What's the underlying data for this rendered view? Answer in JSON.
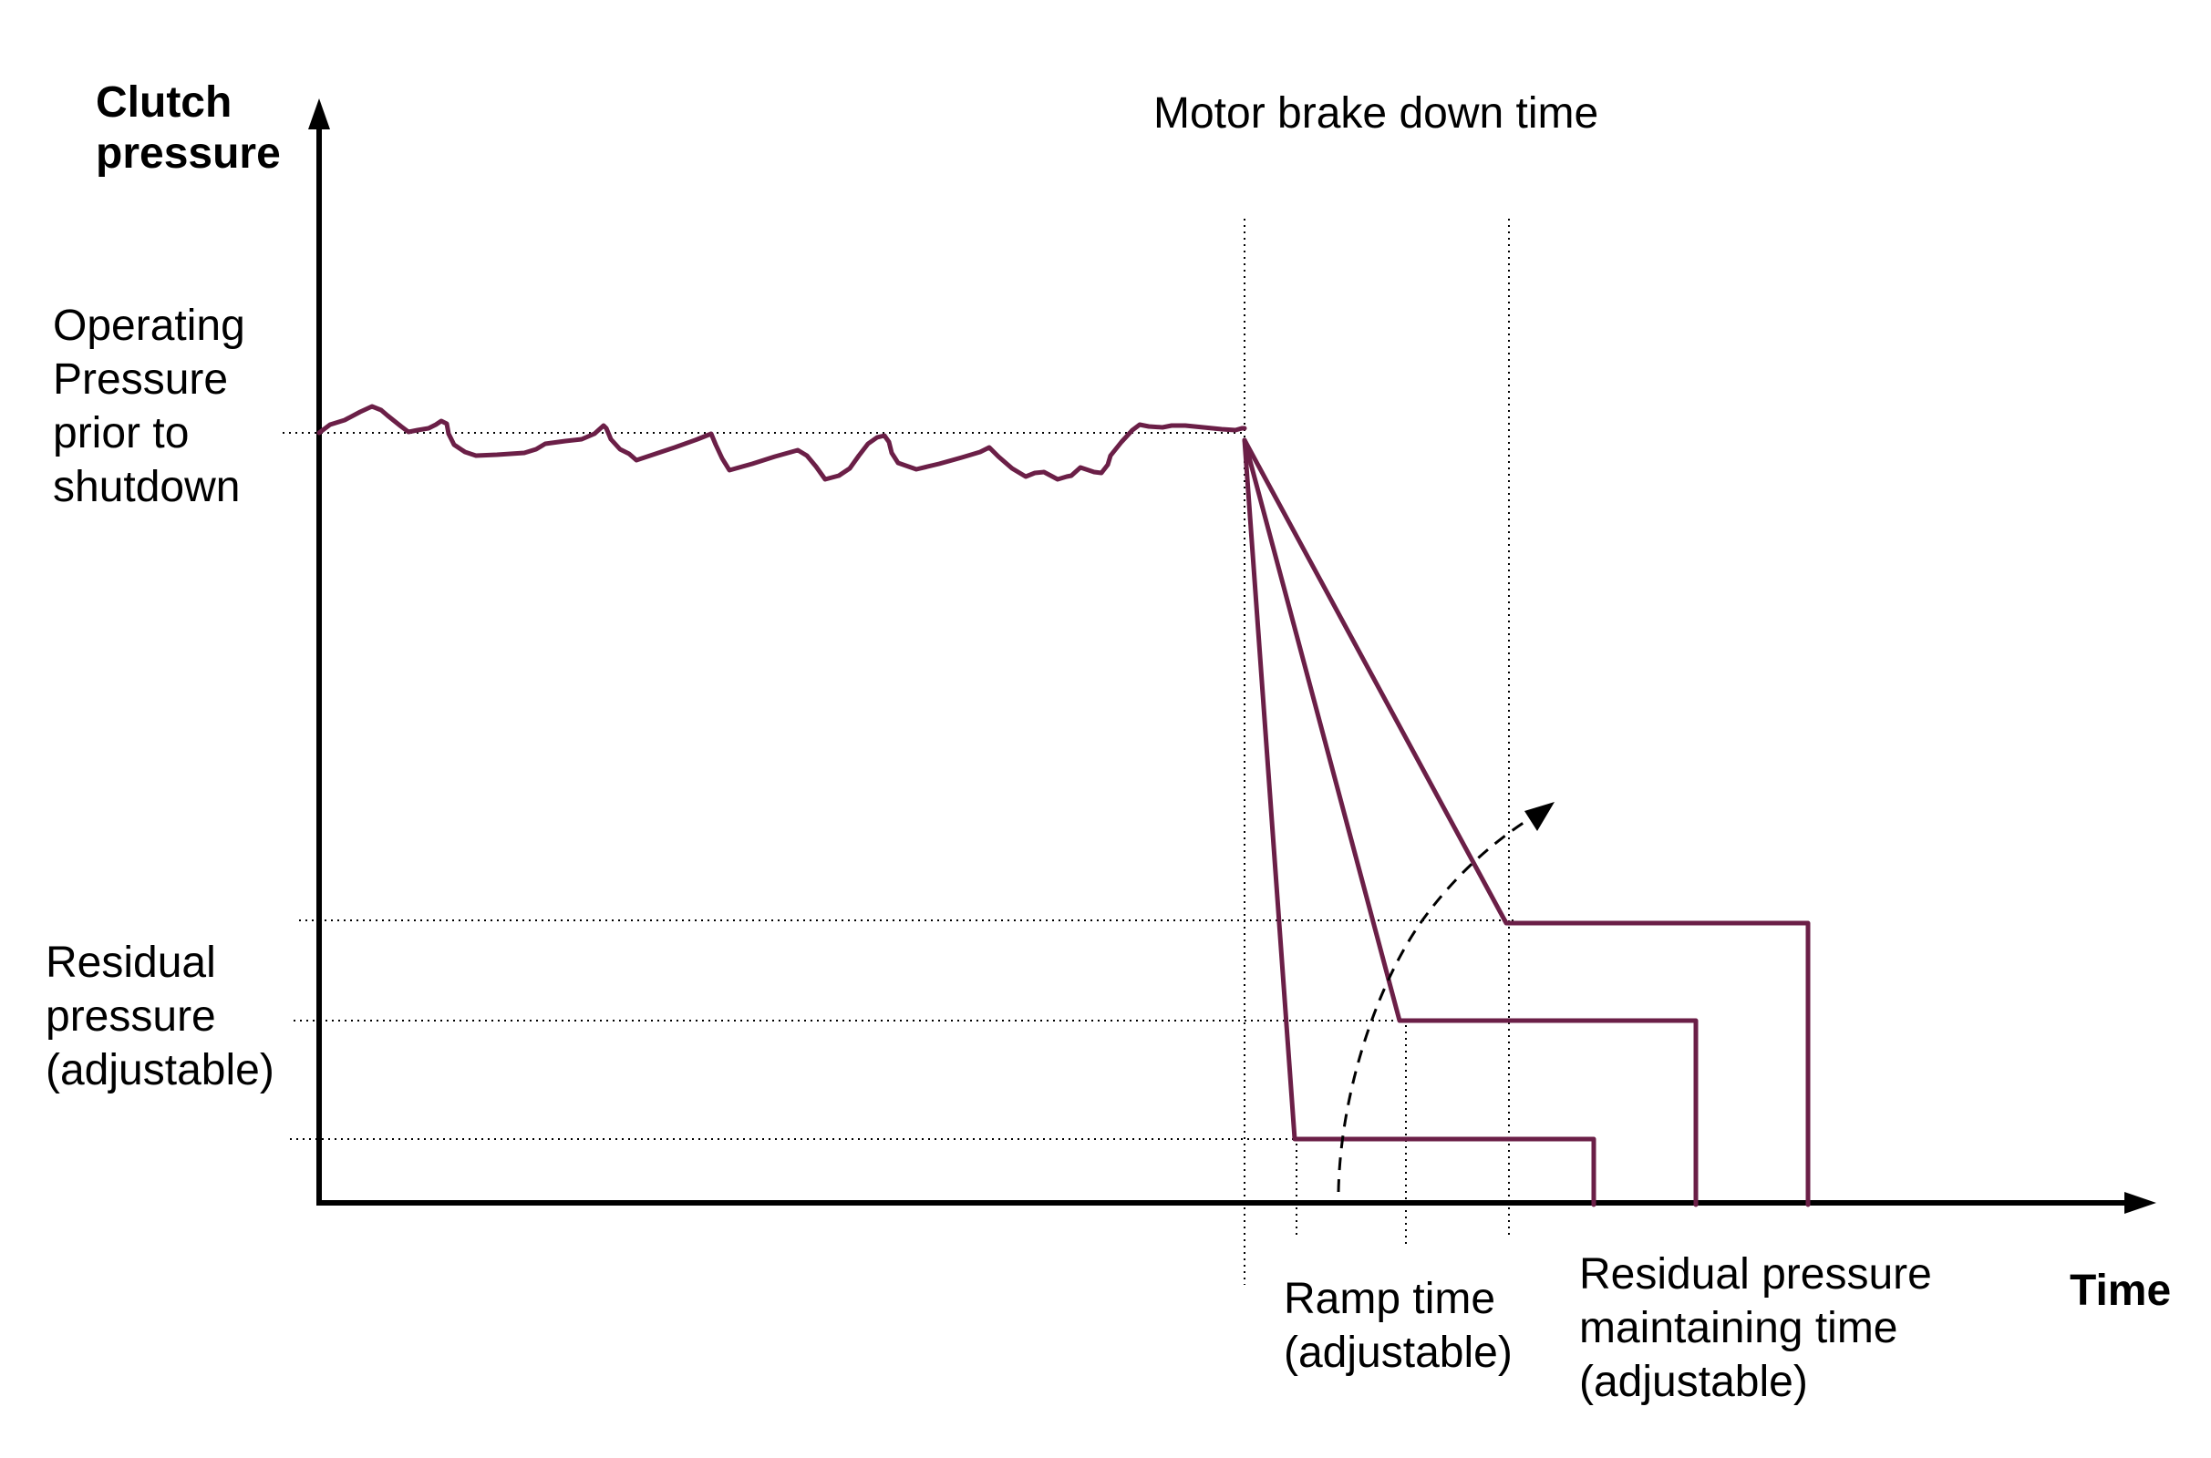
{
  "title": "Motor brake down time",
  "y_axis": {
    "label_lines": [
      "Clutch",
      "pressure"
    ]
  },
  "x_axis": {
    "label": "Time"
  },
  "labels": {
    "operating_pressure": [
      "Operating",
      "Pressure",
      "prior to",
      "shutdown"
    ],
    "residual_pressure": [
      "Residual",
      "pressure",
      "(adjustable)"
    ],
    "ramp_time": [
      "Ramp time",
      "(adjustable)"
    ],
    "residual_time": [
      "Residual pressure",
      "maintaining time",
      "(adjustable)"
    ]
  },
  "colors": {
    "curve": "#6b1f47",
    "axis": "#000000",
    "guides": "#000000",
    "arrow": "#000000"
  }
}
